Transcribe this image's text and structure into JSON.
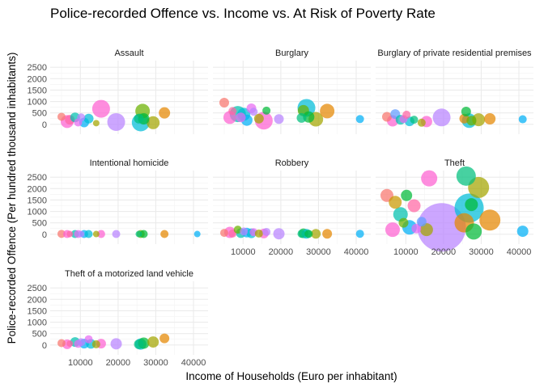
{
  "chart_data": {
    "type": "scatter",
    "title": "Police-recorded Offence vs. Income vs. At Risk of Poverty Rate",
    "xlabel": "Income of Households (Euro per inhabitant)",
    "ylabel": "Police-recorded Offence (Per hundred thousand inhabitants)",
    "xlim": [
      3500,
      43000
    ],
    "ylim": [
      -150,
      2650
    ],
    "x_ticks": [
      10000,
      20000,
      30000,
      40000
    ],
    "x_tick_labels": [
      "10000",
      "20000",
      "30000",
      "40000"
    ],
    "y_ticks": [
      0,
      500,
      1000,
      1500,
      2000,
      2500
    ],
    "y_tick_labels": [
      "0",
      "500",
      "1000",
      "1500",
      "2000",
      "2500"
    ],
    "grid": true,
    "legend": "none",
    "colors": [
      "#f8766d",
      "#e58700",
      "#c99800",
      "#a3a500",
      "#6bb100",
      "#00ba38",
      "#00bf7d",
      "#00c0af",
      "#00bcd8",
      "#00b0f6",
      "#619cff",
      "#b983ff",
      "#e76bf3",
      "#fd61d1",
      "#ff67a4"
    ],
    "panels": [
      {
        "name": "Assault",
        "points": [
          {
            "x": 5000,
            "y": 330,
            "size": 5,
            "color": "#f8766d"
          },
          {
            "x": 6500,
            "y": 120,
            "size": 8,
            "color": "#fd61d1"
          },
          {
            "x": 7200,
            "y": 200,
            "size": 6,
            "color": "#ff67a4"
          },
          {
            "x": 8600,
            "y": 300,
            "size": 6,
            "color": "#00c0af"
          },
          {
            "x": 9400,
            "y": 80,
            "size": 5,
            "color": "#e76bf3"
          },
          {
            "x": 10200,
            "y": 300,
            "size": 5,
            "color": "#b983ff"
          },
          {
            "x": 11000,
            "y": 80,
            "size": 6,
            "color": "#00b0f6"
          },
          {
            "x": 12200,
            "y": 250,
            "size": 6,
            "color": "#00bcd8"
          },
          {
            "x": 14200,
            "y": 50,
            "size": 4,
            "color": "#a3a500"
          },
          {
            "x": 15500,
            "y": 680,
            "size": 11,
            "color": "#fd61d1"
          },
          {
            "x": 19500,
            "y": 100,
            "size": 11,
            "color": "#b983ff"
          },
          {
            "x": 25500,
            "y": 250,
            "size": 6,
            "color": "#00bf7d"
          },
          {
            "x": 26000,
            "y": 80,
            "size": 11,
            "color": "#00bcd8"
          },
          {
            "x": 26500,
            "y": 580,
            "size": 9,
            "color": "#6bb100"
          },
          {
            "x": 26800,
            "y": 240,
            "size": 7,
            "color": "#00ba38"
          },
          {
            "x": 29300,
            "y": 70,
            "size": 8,
            "color": "#a3a500"
          },
          {
            "x": 32300,
            "y": 500,
            "size": 7,
            "color": "#e58700"
          }
        ]
      },
      {
        "name": "Burglary",
        "points": [
          {
            "x": 5000,
            "y": 950,
            "size": 6,
            "color": "#f8766d"
          },
          {
            "x": 6500,
            "y": 300,
            "size": 8,
            "color": "#fd61d1"
          },
          {
            "x": 7200,
            "y": 580,
            "size": 5,
            "color": "#ff67a4"
          },
          {
            "x": 8600,
            "y": 450,
            "size": 10,
            "color": "#00c0af"
          },
          {
            "x": 9400,
            "y": 300,
            "size": 6,
            "color": "#e76bf3"
          },
          {
            "x": 10200,
            "y": 440,
            "size": 8,
            "color": "#00bcd8"
          },
          {
            "x": 11000,
            "y": 180,
            "size": 7,
            "color": "#00b0f6"
          },
          {
            "x": 12200,
            "y": 700,
            "size": 6,
            "color": "#e76bf3"
          },
          {
            "x": 12800,
            "y": 550,
            "size": 5,
            "color": "#b983ff"
          },
          {
            "x": 14200,
            "y": 250,
            "size": 6,
            "color": "#a3a500"
          },
          {
            "x": 15500,
            "y": 160,
            "size": 11,
            "color": "#fd61d1"
          },
          {
            "x": 16200,
            "y": 600,
            "size": 5,
            "color": "#00ba38"
          },
          {
            "x": 19500,
            "y": 230,
            "size": 6,
            "color": "#b983ff"
          },
          {
            "x": 25500,
            "y": 280,
            "size": 6,
            "color": "#00bf7d"
          },
          {
            "x": 26000,
            "y": 600,
            "size": 7,
            "color": "#6bb100"
          },
          {
            "x": 26800,
            "y": 720,
            "size": 11,
            "color": "#00bcd8"
          },
          {
            "x": 27400,
            "y": 320,
            "size": 7,
            "color": "#00ba38"
          },
          {
            "x": 29300,
            "y": 220,
            "size": 9,
            "color": "#a3a500"
          },
          {
            "x": 32300,
            "y": 580,
            "size": 9,
            "color": "#e58700"
          },
          {
            "x": 41000,
            "y": 230,
            "size": 5,
            "color": "#00b0f6"
          }
        ]
      },
      {
        "name": "Burglary of private residential premises",
        "points": [
          {
            "x": 5000,
            "y": 330,
            "size": 6,
            "color": "#f8766d"
          },
          {
            "x": 6500,
            "y": 150,
            "size": 7,
            "color": "#fd61d1"
          },
          {
            "x": 7200,
            "y": 450,
            "size": 6,
            "color": "#619cff"
          },
          {
            "x": 8600,
            "y": 200,
            "size": 6,
            "color": "#00c0af"
          },
          {
            "x": 9400,
            "y": 230,
            "size": 5,
            "color": "#e76bf3"
          },
          {
            "x": 10200,
            "y": 420,
            "size": 5,
            "color": "#ff67a4"
          },
          {
            "x": 11000,
            "y": 130,
            "size": 6,
            "color": "#00bcd8"
          },
          {
            "x": 12200,
            "y": 200,
            "size": 5,
            "color": "#00bf7d"
          },
          {
            "x": 14200,
            "y": 70,
            "size": 5,
            "color": "#a3a500"
          },
          {
            "x": 15500,
            "y": 120,
            "size": 7,
            "color": "#fd61d1"
          },
          {
            "x": 19500,
            "y": 300,
            "size": 11,
            "color": "#b983ff"
          },
          {
            "x": 25500,
            "y": 250,
            "size": 6,
            "color": "#e58700"
          },
          {
            "x": 26000,
            "y": 560,
            "size": 6,
            "color": "#00ba38"
          },
          {
            "x": 26800,
            "y": 160,
            "size": 9,
            "color": "#00bcd8"
          },
          {
            "x": 27400,
            "y": 160,
            "size": 6,
            "color": "#6bb100"
          },
          {
            "x": 29300,
            "y": 200,
            "size": 8,
            "color": "#a3a500"
          },
          {
            "x": 32300,
            "y": 240,
            "size": 7,
            "color": "#e58700"
          },
          {
            "x": 41000,
            "y": 220,
            "size": 5,
            "color": "#00b0f6"
          }
        ]
      },
      {
        "name": "Intentional homicide",
        "points": [
          {
            "x": 5000,
            "y": 15,
            "size": 5,
            "color": "#f8766d"
          },
          {
            "x": 6500,
            "y": 8,
            "size": 5,
            "color": "#fd61d1"
          },
          {
            "x": 7200,
            "y": 10,
            "size": 4,
            "color": "#ff67a4"
          },
          {
            "x": 8600,
            "y": 8,
            "size": 5,
            "color": "#00c0af"
          },
          {
            "x": 9400,
            "y": 10,
            "size": 5,
            "color": "#e76bf3"
          },
          {
            "x": 10200,
            "y": 8,
            "size": 4,
            "color": "#b983ff"
          },
          {
            "x": 11000,
            "y": 10,
            "size": 5,
            "color": "#00b0f6"
          },
          {
            "x": 12200,
            "y": 10,
            "size": 5,
            "color": "#00bcd8"
          },
          {
            "x": 14200,
            "y": 8,
            "size": 4,
            "color": "#a3a500"
          },
          {
            "x": 15500,
            "y": 10,
            "size": 5,
            "color": "#fd61d1"
          },
          {
            "x": 19500,
            "y": 10,
            "size": 5,
            "color": "#b983ff"
          },
          {
            "x": 25500,
            "y": 8,
            "size": 4,
            "color": "#00bf7d"
          },
          {
            "x": 26000,
            "y": 10,
            "size": 5,
            "color": "#6bb100"
          },
          {
            "x": 26800,
            "y": 10,
            "size": 5,
            "color": "#00ba38"
          },
          {
            "x": 32300,
            "y": 10,
            "size": 5,
            "color": "#e58700"
          },
          {
            "x": 41000,
            "y": 8,
            "size": 4,
            "color": "#00b0f6"
          }
        ]
      },
      {
        "name": "Robbery",
        "points": [
          {
            "x": 5000,
            "y": 60,
            "size": 5,
            "color": "#f8766d"
          },
          {
            "x": 6500,
            "y": 80,
            "size": 7,
            "color": "#fd61d1"
          },
          {
            "x": 7200,
            "y": 30,
            "size": 5,
            "color": "#ff67a4"
          },
          {
            "x": 8600,
            "y": 200,
            "size": 5,
            "color": "#6bb100"
          },
          {
            "x": 9400,
            "y": 50,
            "size": 6,
            "color": "#00c0af"
          },
          {
            "x": 10200,
            "y": 120,
            "size": 5,
            "color": "#b983ff"
          },
          {
            "x": 11000,
            "y": 70,
            "size": 6,
            "color": "#00b0f6"
          },
          {
            "x": 12200,
            "y": 40,
            "size": 6,
            "color": "#00bcd8"
          },
          {
            "x": 12800,
            "y": 90,
            "size": 5,
            "color": "#e76bf3"
          },
          {
            "x": 14200,
            "y": 30,
            "size": 5,
            "color": "#a3a500"
          },
          {
            "x": 15500,
            "y": 30,
            "size": 6,
            "color": "#fd61d1"
          },
          {
            "x": 16200,
            "y": 100,
            "size": 5,
            "color": "#b983ff"
          },
          {
            "x": 19500,
            "y": 20,
            "size": 7,
            "color": "#b983ff"
          },
          {
            "x": 25500,
            "y": 20,
            "size": 5,
            "color": "#00bf7d"
          },
          {
            "x": 26000,
            "y": 40,
            "size": 6,
            "color": "#00ba38"
          },
          {
            "x": 26800,
            "y": 20,
            "size": 6,
            "color": "#00bcd8"
          },
          {
            "x": 27400,
            "y": 15,
            "size": 5,
            "color": "#00ba38"
          },
          {
            "x": 29300,
            "y": 20,
            "size": 6,
            "color": "#a3a500"
          },
          {
            "x": 32300,
            "y": 20,
            "size": 6,
            "color": "#e58700"
          },
          {
            "x": 41000,
            "y": 20,
            "size": 5,
            "color": "#00b0f6"
          }
        ]
      },
      {
        "name": "Theft",
        "points": [
          {
            "x": 5000,
            "y": 1700,
            "size": 8,
            "color": "#f8766d"
          },
          {
            "x": 6500,
            "y": 200,
            "size": 9,
            "color": "#fd61d1"
          },
          {
            "x": 7200,
            "y": 1400,
            "size": 8,
            "color": "#c99800"
          },
          {
            "x": 8600,
            "y": 870,
            "size": 9,
            "color": "#00c0af"
          },
          {
            "x": 9400,
            "y": 500,
            "size": 6,
            "color": "#6bb100"
          },
          {
            "x": 10200,
            "y": 1700,
            "size": 7,
            "color": "#00ba38"
          },
          {
            "x": 11000,
            "y": 300,
            "size": 9,
            "color": "#00b0f6"
          },
          {
            "x": 12200,
            "y": 1250,
            "size": 8,
            "color": "#ff67a4"
          },
          {
            "x": 12800,
            "y": 250,
            "size": 6,
            "color": "#e76bf3"
          },
          {
            "x": 14200,
            "y": 550,
            "size": 6,
            "color": "#619cff"
          },
          {
            "x": 15500,
            "y": 200,
            "size": 8,
            "color": "#a3a500"
          },
          {
            "x": 16200,
            "y": 2450,
            "size": 10,
            "color": "#fd61d1"
          },
          {
            "x": 19500,
            "y": 300,
            "size": 30,
            "color": "#b983ff"
          },
          {
            "x": 25500,
            "y": 500,
            "size": 12,
            "color": "#e58700"
          },
          {
            "x": 26000,
            "y": 2550,
            "size": 12,
            "color": "#00bf7d"
          },
          {
            "x": 26800,
            "y": 1150,
            "size": 18,
            "color": "#00bcd8"
          },
          {
            "x": 27400,
            "y": 1300,
            "size": 8,
            "color": "#00ba38"
          },
          {
            "x": 28000,
            "y": 120,
            "size": 10,
            "color": "#00ba38"
          },
          {
            "x": 29300,
            "y": 2050,
            "size": 13,
            "color": "#a3a500"
          },
          {
            "x": 32300,
            "y": 620,
            "size": 13,
            "color": "#e58700"
          },
          {
            "x": 41000,
            "y": 130,
            "size": 7,
            "color": "#00b0f6"
          }
        ]
      },
      {
        "name": "Theft of a motorized land vehicle",
        "points": [
          {
            "x": 5000,
            "y": 80,
            "size": 5,
            "color": "#f8766d"
          },
          {
            "x": 6500,
            "y": 30,
            "size": 6,
            "color": "#fd61d1"
          },
          {
            "x": 7200,
            "y": 60,
            "size": 4,
            "color": "#ff67a4"
          },
          {
            "x": 8600,
            "y": 130,
            "size": 6,
            "color": "#00c0af"
          },
          {
            "x": 9400,
            "y": 50,
            "size": 5,
            "color": "#e76bf3"
          },
          {
            "x": 10200,
            "y": 120,
            "size": 5,
            "color": "#b983ff"
          },
          {
            "x": 11000,
            "y": 60,
            "size": 6,
            "color": "#00b0f6"
          },
          {
            "x": 12200,
            "y": 250,
            "size": 5,
            "color": "#e76bf3"
          },
          {
            "x": 12800,
            "y": 50,
            "size": 6,
            "color": "#00bcd8"
          },
          {
            "x": 14200,
            "y": 30,
            "size": 5,
            "color": "#a3a500"
          },
          {
            "x": 15500,
            "y": 60,
            "size": 6,
            "color": "#fd61d1"
          },
          {
            "x": 19500,
            "y": 50,
            "size": 7,
            "color": "#b983ff"
          },
          {
            "x": 25500,
            "y": 30,
            "size": 6,
            "color": "#00bf7d"
          },
          {
            "x": 26000,
            "y": 40,
            "size": 7,
            "color": "#00bcd8"
          },
          {
            "x": 26800,
            "y": 80,
            "size": 7,
            "color": "#00ba38"
          },
          {
            "x": 29300,
            "y": 130,
            "size": 7,
            "color": "#a3a500"
          },
          {
            "x": 32300,
            "y": 290,
            "size": 6,
            "color": "#e58700"
          }
        ]
      }
    ]
  }
}
